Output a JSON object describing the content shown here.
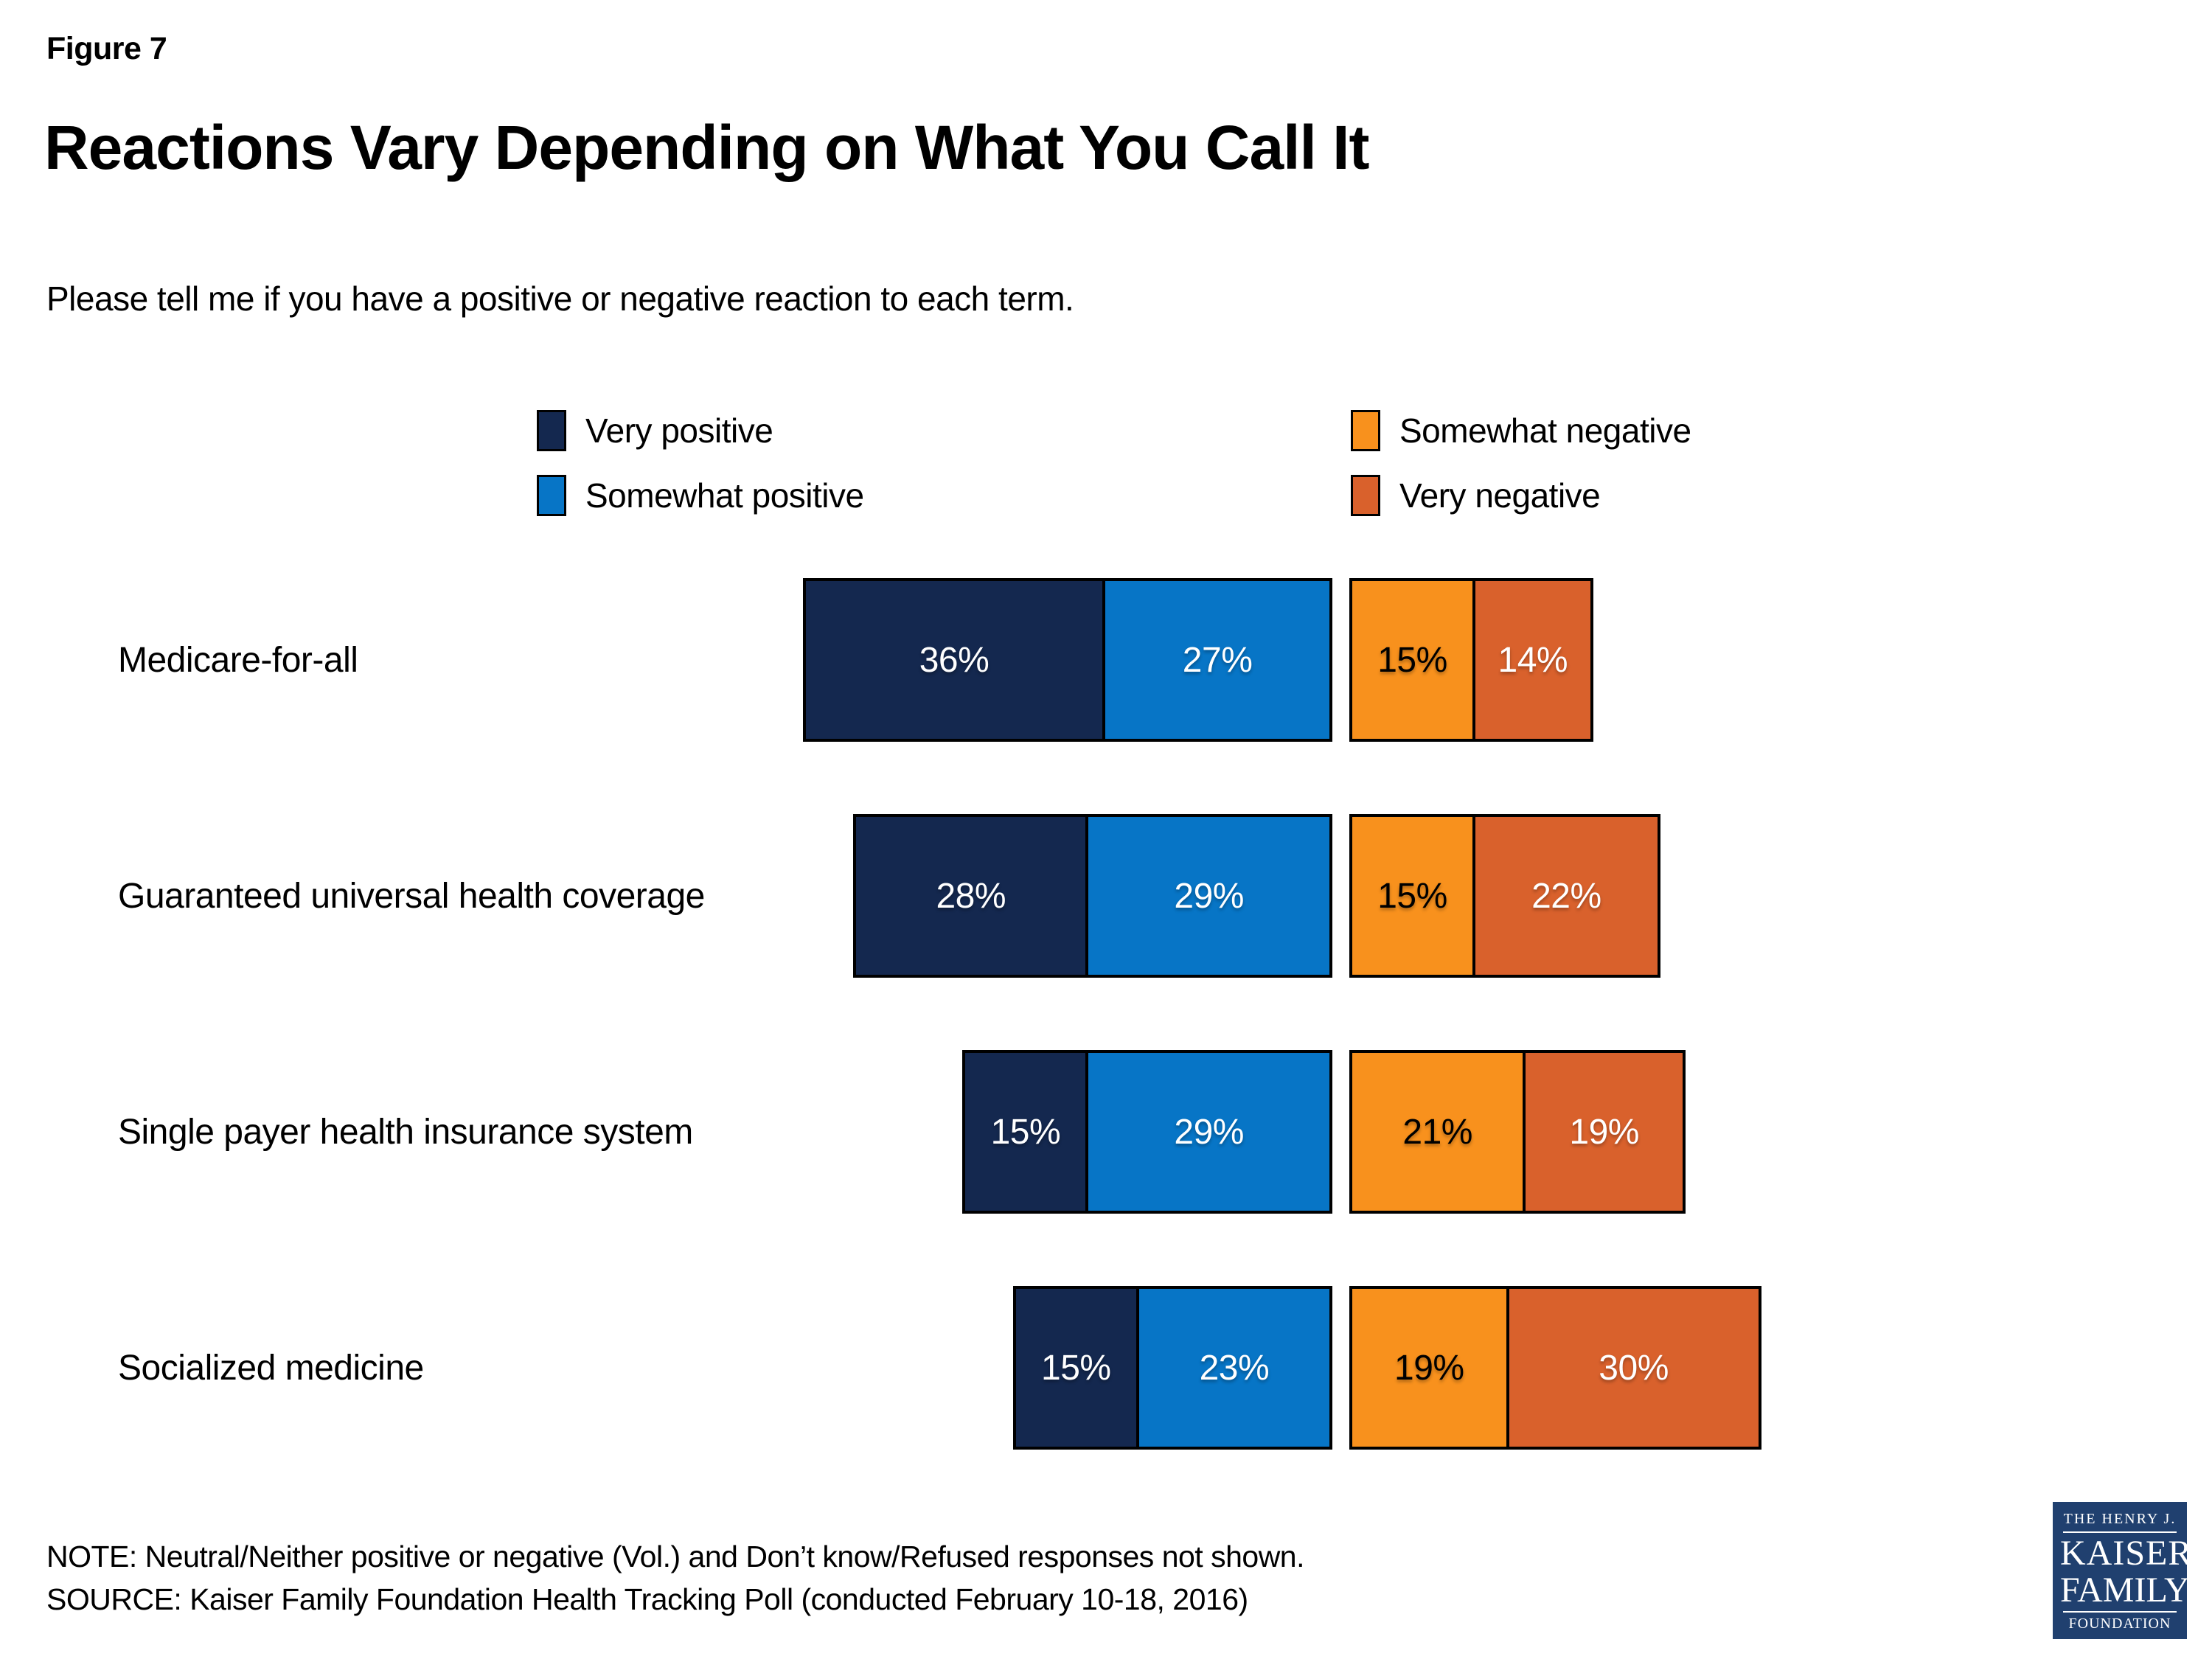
{
  "figure_label": "Figure 7",
  "title": "Reactions Vary Depending on What You Call It",
  "subtitle": "Please tell me if you have a positive or negative reaction to each term.",
  "legend": [
    {
      "label": "Very positive",
      "color": "#14284f"
    },
    {
      "label": "Somewhat positive",
      "color": "#0775c6"
    },
    {
      "label": "Somewhat negative",
      "color": "#f8911d"
    },
    {
      "label": "Very negative",
      "color": "#d9612c"
    }
  ],
  "chart_data": {
    "type": "bar",
    "subtype": "horizontal-diverging-stacked",
    "categories": [
      "Medicare-for-all",
      "Guaranteed universal health coverage",
      "Single payer health insurance system",
      "Socialized medicine"
    ],
    "series": [
      {
        "name": "Very positive",
        "color": "#14284f",
        "label_color": "#ffffff",
        "values": [
          36,
          28,
          15,
          15
        ]
      },
      {
        "name": "Somewhat positive",
        "color": "#0775c6",
        "label_color": "#ffffff",
        "values": [
          27,
          29,
          29,
          23
        ]
      },
      {
        "name": "Somewhat negative",
        "color": "#f8911d",
        "label_color": "#000000",
        "values": [
          15,
          15,
          21,
          19
        ]
      },
      {
        "name": "Very negative",
        "color": "#d9612c",
        "label_color": "#ffffff",
        "values": [
          14,
          22,
          19,
          30
        ]
      }
    ],
    "value_suffix": "%",
    "legend_position": "top",
    "grid": false,
    "axis_labels_shown": false
  },
  "note": "NOTE: Neutral/Neither positive or negative (Vol.) and Don’t know/Refused responses not shown.",
  "source": "SOURCE: Kaiser Family Foundation Health Tracking Poll (conducted February 10-18, 2016)",
  "logo": {
    "line1": "THE HENRY J.",
    "line2": "KAISER",
    "line3": "FAMILY",
    "line4": "FOUNDATION",
    "bg_color": "#20406f"
  }
}
